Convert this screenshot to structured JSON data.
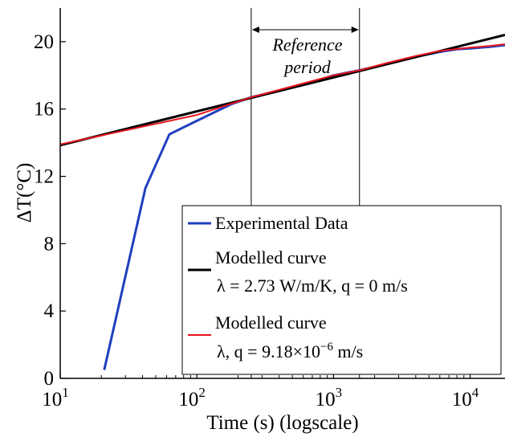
{
  "chart_data": {
    "type": "line",
    "xscale": "log",
    "xlim": [
      10,
      18000
    ],
    "ylim": [
      0,
      22
    ],
    "x_ticks": [
      10,
      100,
      1000,
      10000
    ],
    "x_tick_labels": [
      {
        "base": "10",
        "exp": "1"
      },
      {
        "base": "10",
        "exp": "2"
      },
      {
        "base": "10",
        "exp": "3"
      },
      {
        "base": "10",
        "exp": "4"
      }
    ],
    "y_ticks": [
      0,
      4,
      8,
      12,
      16,
      20
    ],
    "y_tick_labels": [
      "0",
      "4",
      "8",
      "12",
      "16",
      "20"
    ],
    "xlabel": "Time (s) (logscale)",
    "ylabel": "ΔT(°C)",
    "grid": false,
    "legend_position": "bottom-right",
    "reference_period": {
      "start": 250,
      "end": 1550,
      "label_line1": "Reference",
      "label_line2": "period"
    },
    "series": [
      {
        "color": "#1f3fbf",
        "x": [
          21,
          42,
          63,
          100,
          180,
          250,
          400,
          700,
          1000,
          1550,
          2500,
          4000,
          6000,
          8000,
          10000,
          14000,
          18000
        ],
        "y": [
          0.5,
          11.3,
          14.5,
          15.3,
          16.3,
          16.7,
          17.1,
          17.6,
          18.0,
          18.3,
          18.7,
          19.1,
          19.4,
          19.55,
          19.6,
          19.7,
          19.8
        ]
      },
      {
        "color": "#000000",
        "x": [
          10,
          18000
        ],
        "y": [
          13.85,
          20.4
        ]
      },
      {
        "color": "#e8141c",
        "x": [
          10,
          100,
          250,
          1000,
          1550,
          2500,
          4000,
          6000,
          10000,
          14000,
          18000
        ],
        "y": [
          13.9,
          15.65,
          16.7,
          18.0,
          18.3,
          18.75,
          19.15,
          19.45,
          19.65,
          19.75,
          19.85
        ]
      }
    ],
    "legend": [
      {
        "color": "#1f3fbf",
        "line1": "Experimental Data",
        "line2": ""
      },
      {
        "color": "#000000",
        "line1": "Modelled curve",
        "line2": "λ = 2.73 W/m/K, q = 0 m/s"
      },
      {
        "color": "#e8141c",
        "line1": "Modelled curve",
        "line2_prefix": "λ, q = 9.18×10",
        "line2_exp": "−6",
        "line2_suffix": " m/s"
      }
    ]
  }
}
